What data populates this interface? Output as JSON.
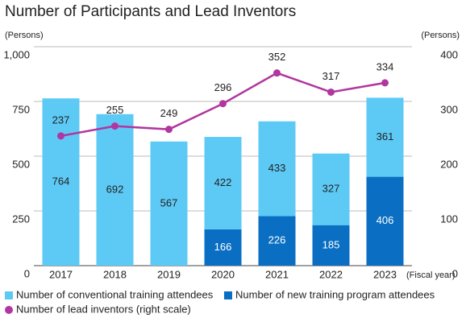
{
  "chart_data": {
    "type": "bar_line",
    "title": "Number of Participants and Lead Inventors",
    "y_label": "(Persons)",
    "y2_label": "(Persons)",
    "x_label": "(Fiscal year)",
    "categories": [
      "2017",
      "2018",
      "2019",
      "2020",
      "2021",
      "2022",
      "2023"
    ],
    "series": [
      {
        "name": "Number of new training program attendees",
        "color": "#0a6fc2",
        "type": "bar",
        "values": [
          null,
          null,
          null,
          166,
          226,
          185,
          406
        ]
      },
      {
        "name": "Number of conventional training attendees",
        "color": "#5dcaf5",
        "type": "bar",
        "values": [
          764,
          692,
          567,
          422,
          433,
          327,
          361
        ]
      },
      {
        "name": "Number of lead inventors (right scale)",
        "color": "#b1369f",
        "type": "line",
        "axis": "y2",
        "values": [
          237,
          255,
          249,
          296,
          352,
          317,
          334
        ]
      }
    ],
    "ylim": [
      0,
      1000
    ],
    "yticks": [
      0,
      250,
      500,
      750,
      {
        "value": 1000,
        "label": "1,000"
      }
    ],
    "y2lim": [
      0,
      400
    ],
    "y2ticks": [
      0,
      100,
      200,
      300,
      400
    ],
    "grid": true
  }
}
